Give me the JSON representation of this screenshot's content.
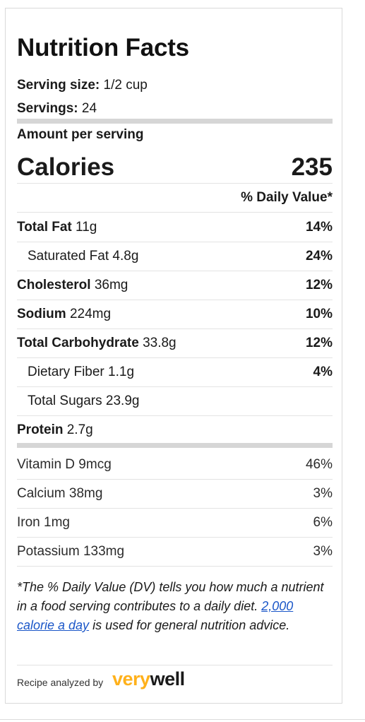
{
  "title": "Nutrition Facts",
  "serving_size_label": "Serving size:",
  "serving_size_value": "1/2 cup",
  "servings_label": "Servings:",
  "servings_value": "24",
  "amount_per_serving": "Amount per serving",
  "calories_label": "Calories",
  "calories_value": "235",
  "daily_value_header": "% Daily Value*",
  "nutrients": [
    {
      "name": "Total Fat",
      "amount": "11g",
      "dv": "14%",
      "bold": true,
      "indent": false
    },
    {
      "name": "Saturated Fat",
      "amount": "4.8g",
      "dv": "24%",
      "bold": false,
      "indent": true
    },
    {
      "name": "Cholesterol",
      "amount": "36mg",
      "dv": "12%",
      "bold": true,
      "indent": false
    },
    {
      "name": "Sodium",
      "amount": "224mg",
      "dv": "10%",
      "bold": true,
      "indent": false
    },
    {
      "name": "Total Carbohydrate",
      "amount": "33.8g",
      "dv": "12%",
      "bold": true,
      "indent": false
    },
    {
      "name": "Dietary Fiber",
      "amount": "1.1g",
      "dv": "4%",
      "bold": false,
      "indent": true
    },
    {
      "name": "Total Sugars",
      "amount": "23.9g",
      "dv": "",
      "bold": false,
      "indent": true
    },
    {
      "name": "Protein",
      "amount": "2.7g",
      "dv": "",
      "bold": true,
      "indent": false
    }
  ],
  "vitamins": [
    {
      "name": "Vitamin D",
      "amount": "9mcg",
      "dv": "46%"
    },
    {
      "name": "Calcium",
      "amount": "38mg",
      "dv": "3%"
    },
    {
      "name": "Iron",
      "amount": "1mg",
      "dv": "6%"
    },
    {
      "name": "Potassium",
      "amount": "133mg",
      "dv": "3%"
    }
  ],
  "footnote": {
    "text_before": "*The % Daily Value (DV) tells you how much a nutrient in a food serving contributes to a daily diet.",
    "link_text": "2,000 calorie a day",
    "text_after": "is used for general nutrition advice."
  },
  "analyzed_by": "Recipe analyzed by",
  "logo": {
    "part1": "very",
    "part2": "well",
    "accent_color": "#ffb11b"
  }
}
